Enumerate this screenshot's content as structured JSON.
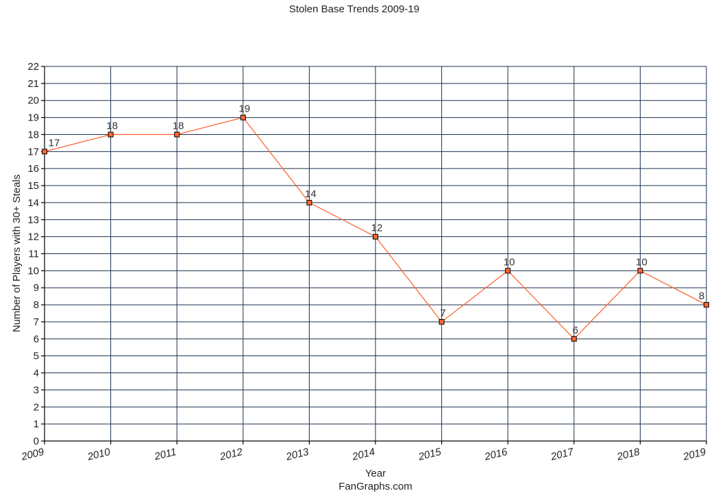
{
  "chart_data": {
    "type": "line",
    "title": "Stolen Base Trends 2009-19",
    "xlabel": "Year",
    "ylabel": "Number of Players with 30+ Steals",
    "credit": "FanGraphs.com",
    "categories": [
      "2009",
      "2010",
      "2011",
      "2012",
      "2013",
      "2014",
      "2015",
      "2016",
      "2017",
      "2018",
      "2019"
    ],
    "series": [
      {
        "values": [
          17,
          18,
          18,
          19,
          14,
          12,
          7,
          10,
          6,
          10,
          8
        ],
        "color": "#ff6633"
      }
    ],
    "ylim": [
      0,
      22
    ],
    "yticks": [
      "0",
      "1",
      "2",
      "3",
      "4",
      "5",
      "6",
      "7",
      "8",
      "9",
      "10",
      "11",
      "12",
      "13",
      "14",
      "15",
      "16",
      "17",
      "18",
      "19",
      "20",
      "21",
      "22"
    ],
    "grid": true,
    "colors": {
      "grid": "#1a2f4a",
      "line": "#ff6633",
      "marker_fill": "#ff6633",
      "marker_stroke": "#000000"
    }
  }
}
